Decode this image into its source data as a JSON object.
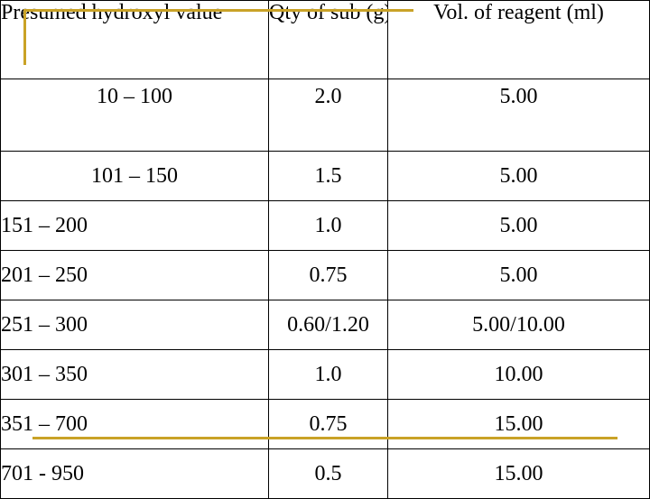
{
  "table": {
    "headers": [
      "Presumed hydroxyl value",
      "Qty of sub (g)",
      "Vol. of reagent (ml)"
    ],
    "rows": [
      [
        "10 – 100",
        "2.0",
        "5.00"
      ],
      [
        "101 – 150",
        "1.5",
        "5.00"
      ],
      [
        "151 – 200",
        "1.0",
        "5.00"
      ],
      [
        "201 – 250",
        "0.75",
        "5.00"
      ],
      [
        "251 – 300",
        "0.60/1.20",
        "5.00/10.00"
      ],
      [
        "301 – 350",
        "1.0",
        "10.00"
      ],
      [
        "351 – 700",
        "0.75",
        "15.00"
      ],
      [
        "701 - 950",
        "0.5",
        "15.00"
      ]
    ]
  },
  "colors": {
    "accent_line": "#c9a227",
    "border": "#000000",
    "background": "#ffffff"
  }
}
